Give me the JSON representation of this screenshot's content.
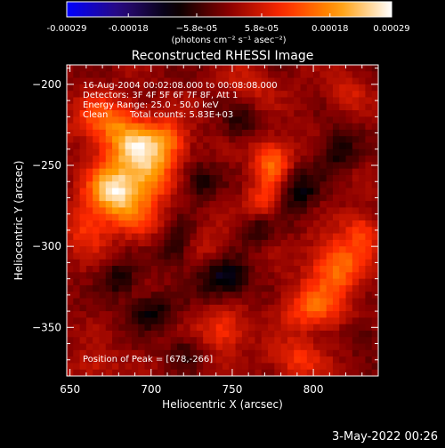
{
  "colorbar": {
    "tick_labels": [
      "-0.00029",
      "-0.00018",
      "−5.8e-05",
      "5.8e-05",
      "0.00018",
      "0.00029"
    ],
    "tick_values": [
      -0.00029,
      -0.00018,
      -5.8e-05,
      5.8e-05,
      0.00018,
      0.00029
    ],
    "range": [
      -0.00029,
      0.00029
    ],
    "units_label": "(photons cm⁻² s⁻¹ asec⁻²)",
    "colors": [
      "#0000ff",
      "#2a0a7a",
      "#000000",
      "#8a0000",
      "#ff2a00",
      "#ff9a00",
      "#ffffff"
    ]
  },
  "annotations": {
    "time_range": "16-Aug-2004 00:02:08.000 to 00:08:08.000",
    "detectors": "Detectors: 3F 4F 5F 6F 7F 8F, Att 1",
    "energy_range": "Energy Range: 25.0 - 50.0 keV",
    "algorithm": "Clean",
    "total_counts": "Total counts: 5.83E+03",
    "peak": "Position of Peak = [678,-266]"
  },
  "footer": {
    "date_stamp": "3-May-2022 00:26"
  },
  "chart_data": {
    "type": "heatmap",
    "title": "Reconstructed RHESSI Image",
    "xlabel": "Heliocentric X (arcsec)",
    "ylabel": "Heliocentric Y (arcsec)",
    "xlim": [
      648,
      840
    ],
    "ylim": [
      -380,
      -188
    ],
    "xticks": [
      650,
      700,
      750,
      800
    ],
    "yticks": [
      -200,
      -250,
      -300,
      -350
    ],
    "peak": {
      "x": 678,
      "y": -266
    },
    "blobs": [
      {
        "x": 678,
        "y": -266,
        "sx": 12,
        "sy": 12,
        "amp": 2.2
      },
      {
        "x": 690,
        "y": -238,
        "sx": 13,
        "sy": 10,
        "amp": 1.6
      },
      {
        "x": 700,
        "y": -255,
        "sx": 10,
        "sy": 12,
        "amp": 1.3
      },
      {
        "x": 672,
        "y": -222,
        "sx": 14,
        "sy": 10,
        "amp": 1.1
      },
      {
        "x": 712,
        "y": -233,
        "sx": 9,
        "sy": 9,
        "amp": 0.9
      },
      {
        "x": 660,
        "y": -290,
        "sx": 10,
        "sy": 10,
        "amp": 0.8
      },
      {
        "x": 695,
        "y": -285,
        "sx": 10,
        "sy": 9,
        "amp": 0.6
      },
      {
        "x": 775,
        "y": -248,
        "sx": 9,
        "sy": 10,
        "amp": 1.3
      },
      {
        "x": 770,
        "y": -272,
        "sx": 8,
        "sy": 8,
        "amp": 0.8
      },
      {
        "x": 815,
        "y": -312,
        "sx": 12,
        "sy": 12,
        "amp": 1.3
      },
      {
        "x": 800,
        "y": -338,
        "sx": 13,
        "sy": 10,
        "amp": 1.1
      },
      {
        "x": 830,
        "y": -290,
        "sx": 8,
        "sy": 9,
        "amp": 0.8
      },
      {
        "x": 745,
        "y": -352,
        "sx": 10,
        "sy": 9,
        "amp": 0.9
      },
      {
        "x": 790,
        "y": -370,
        "sx": 12,
        "sy": 8,
        "amp": 0.8
      },
      {
        "x": 760,
        "y": -200,
        "sx": 10,
        "sy": 8,
        "amp": 0.5
      },
      {
        "x": 820,
        "y": -205,
        "sx": 9,
        "sy": 8,
        "amp": 0.5
      },
      {
        "x": 665,
        "y": -375,
        "sx": 10,
        "sy": 8,
        "amp": 0.5
      },
      {
        "x": 735,
        "y": -300,
        "sx": 9,
        "sy": 8,
        "amp": 0.4
      },
      {
        "x": 730,
        "y": -260,
        "sx": 8,
        "sy": 8,
        "amp": -0.7
      },
      {
        "x": 745,
        "y": -320,
        "sx": 11,
        "sy": 9,
        "amp": -1.0
      },
      {
        "x": 790,
        "y": -265,
        "sx": 9,
        "sy": 11,
        "amp": -0.9
      },
      {
        "x": 815,
        "y": -240,
        "sx": 8,
        "sy": 9,
        "amp": -0.8
      },
      {
        "x": 700,
        "y": -340,
        "sx": 10,
        "sy": 8,
        "amp": -0.8
      },
      {
        "x": 680,
        "y": -320,
        "sx": 8,
        "sy": 8,
        "amp": -0.7
      },
      {
        "x": 755,
        "y": -225,
        "sx": 8,
        "sy": 8,
        "amp": -0.6
      },
      {
        "x": 715,
        "y": -300,
        "sx": 8,
        "sy": 10,
        "amp": -0.7
      },
      {
        "x": 830,
        "y": -355,
        "sx": 7,
        "sy": 7,
        "amp": -0.5
      },
      {
        "x": 765,
        "y": -290,
        "sx": 7,
        "sy": 7,
        "amp": -0.6
      },
      {
        "x": 720,
        "y": -365,
        "sx": 8,
        "sy": 7,
        "amp": -0.5
      }
    ],
    "noise": 0.25,
    "grid": false
  }
}
